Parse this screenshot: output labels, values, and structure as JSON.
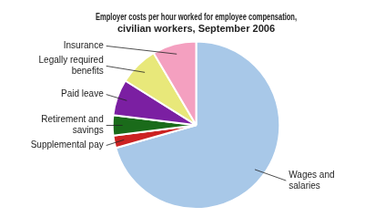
{
  "chart_data": {
    "type": "pie",
    "title": "Employer costs per hour worked for employee compensation,\ncivilian workers, September 2006",
    "categories": [
      "Wages and\nsalaries",
      "Supplemental pay",
      "Retirement and\nsavings",
      "Paid leave",
      "Legally required\nbenefits",
      "Insurance"
    ],
    "values": [
      70.6,
      2.4,
      3.9,
      7.0,
      7.6,
      8.5
    ],
    "colors": [
      "#a8c8e8",
      "#cc2222",
      "#1a6b1a",
      "#7b1fa2",
      "#e8e87a",
      "#f4a0c0"
    ]
  }
}
